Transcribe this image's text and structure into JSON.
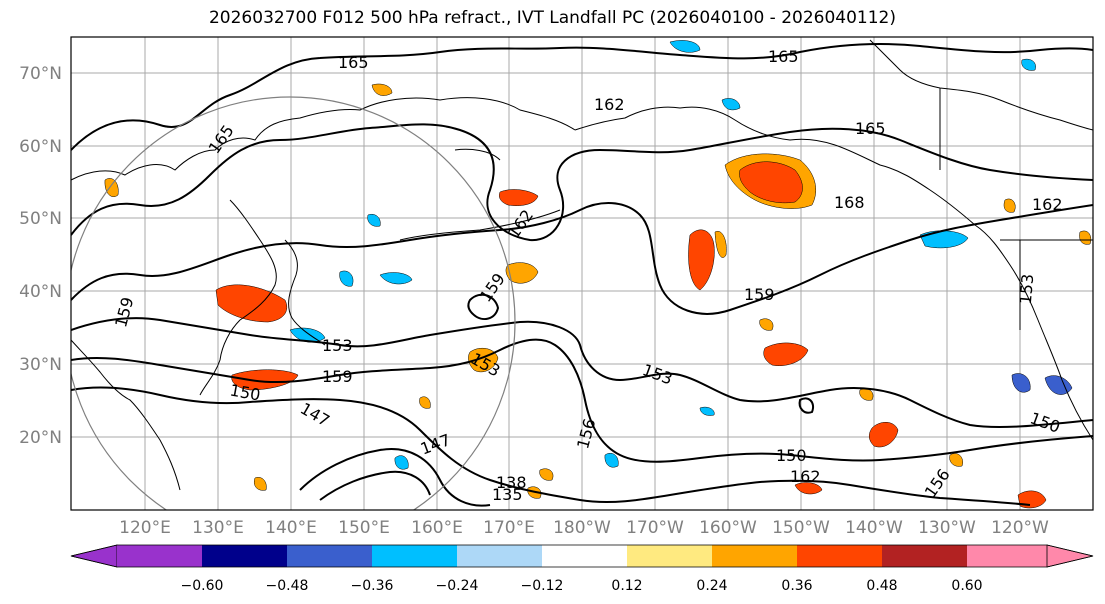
{
  "title": "2026032700 F012 500 hPa refract., IVT Landfall PC (2026040100 - 2026040112)",
  "map": {
    "lat_labels": [
      "70°N",
      "60°N",
      "50°N",
      "40°N",
      "30°N",
      "20°N"
    ],
    "lon_labels": [
      "120°E",
      "130°E",
      "140°E",
      "150°E",
      "160°E",
      "170°E",
      "180°W",
      "170°W",
      "160°W",
      "150°W",
      "140°W",
      "130°W",
      "120°W"
    ],
    "contour_labels": [
      {
        "text": "165",
        "k": "a"
      },
      {
        "text": "165",
        "k": "b"
      },
      {
        "text": "165",
        "k": "c"
      },
      {
        "text": "165",
        "k": "d"
      },
      {
        "text": "162",
        "k": "e"
      },
      {
        "text": "162",
        "k": "f"
      },
      {
        "text": "162",
        "k": "g"
      },
      {
        "text": "168",
        "k": "h"
      },
      {
        "text": "159",
        "k": "i"
      },
      {
        "text": "159",
        "k": "j"
      },
      {
        "text": "159",
        "k": "k"
      },
      {
        "text": "159",
        "k": "l"
      },
      {
        "text": "153",
        "k": "m"
      },
      {
        "text": "153",
        "k": "n"
      },
      {
        "text": "153",
        "k": "o"
      },
      {
        "text": "153",
        "k": "p"
      },
      {
        "text": "150",
        "k": "q"
      },
      {
        "text": "150",
        "k": "r"
      },
      {
        "text": "150",
        "k": "s"
      },
      {
        "text": "147",
        "k": "t"
      },
      {
        "text": "147",
        "k": "u"
      },
      {
        "text": "156",
        "k": "v"
      },
      {
        "text": "156",
        "k": "w"
      },
      {
        "text": "162",
        "k": "x"
      },
      {
        "text": "138",
        "k": "y"
      },
      {
        "text": "135",
        "k": "z"
      }
    ]
  },
  "colorbar": {
    "ticks": [
      "−0.60",
      "−0.48",
      "−0.36",
      "−0.24",
      "−0.12",
      "0.12",
      "0.24",
      "0.36",
      "0.48",
      "0.60"
    ],
    "colors": [
      "#9932cc",
      "#00008b",
      "#3a5fcd",
      "#00bfff",
      "#add8f7",
      "#ffffff",
      "#ffea80",
      "#ffa500",
      "#ff4500",
      "#b22222",
      "#ff88aa"
    ]
  }
}
